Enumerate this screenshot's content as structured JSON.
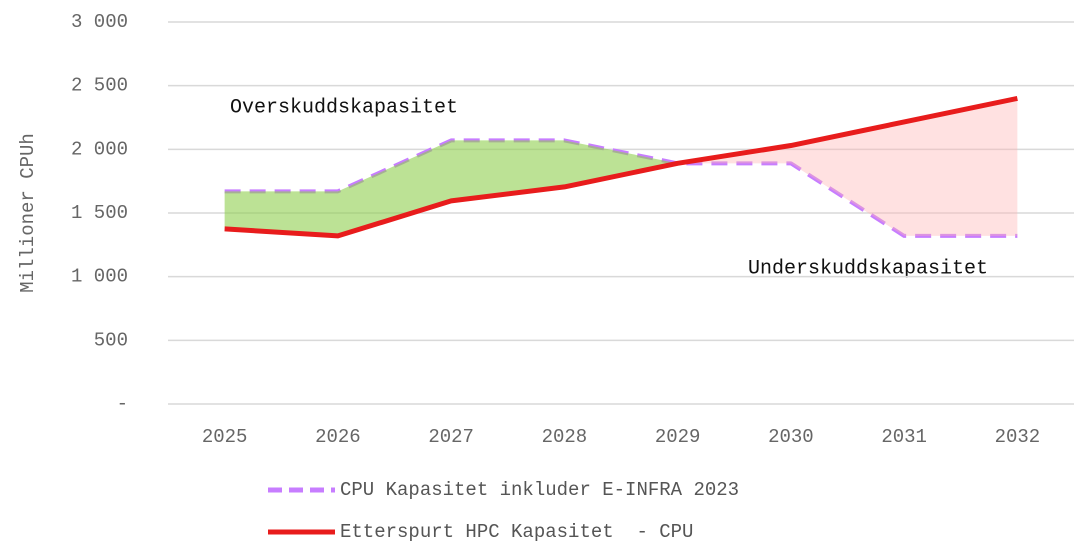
{
  "chart_data": {
    "type": "line",
    "y_label": "Millioner CPUh",
    "categories": [
      "2025",
      "2026",
      "2027",
      "2028",
      "2029",
      "2030",
      "2031",
      "2032"
    ],
    "series": [
      {
        "name": "CPU Kapasitet inkluder E-INFRA 2023",
        "color": "#c77dff",
        "dash": true,
        "values": [
          1670,
          1670,
          2070,
          2070,
          1890,
          1890,
          1320,
          1320
        ]
      },
      {
        "name": "Etterspurt HPC Kapasitet  - CPU",
        "color": "#e81c1c",
        "dash": false,
        "values": [
          1375,
          1320,
          1595,
          1705,
          1890,
          2030,
          2215,
          2400
        ]
      }
    ],
    "annotations": [
      "Overskuddskapasitet",
      "Underskuddskapasitet"
    ],
    "surplus_color": "#8fcf4e",
    "deficit_color": "#ffb3b3",
    "ylim": [
      0,
      3000
    ],
    "yticks": [
      {
        "value": 0,
        "label": "-"
      },
      500,
      {
        "value": 1000,
        "label": "1 000"
      },
      {
        "value": 1500,
        "label": "1 500"
      },
      {
        "value": 2000,
        "label": "2 000"
      },
      {
        "value": 2500,
        "label": "2 500"
      },
      {
        "value": 3000,
        "label": "3 000"
      }
    ],
    "grid": true,
    "legend": "bottom"
  }
}
